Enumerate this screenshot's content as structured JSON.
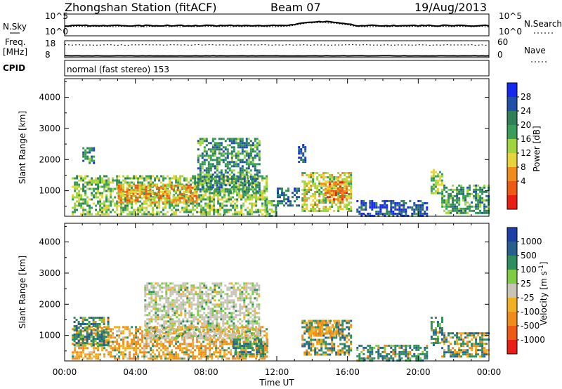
{
  "header": {
    "station": "Zhongshan Station (fitACF)",
    "beam": "Beam 07",
    "date": "19/Aug/2013"
  },
  "summary_panels": {
    "nsky_label": "N.Sky",
    "nsearch_label": "N.Search",
    "nsky_ticks": [
      "10^5",
      "10^0"
    ],
    "nsearch_ticks": [
      "10^5",
      "10^0"
    ],
    "freq_label": "Freq.",
    "freq_unit": "[MHz]",
    "freq_ticks": [
      "18",
      "8"
    ],
    "nave_label": "Nave",
    "nave_ticks": [
      "60",
      "0"
    ],
    "cpid_label": "CPID",
    "cpid_text": "normal (fast stereo) 153"
  },
  "chart_data": [
    {
      "type": "heatmap",
      "name": "Power",
      "ylabel": "Slant Range [km]",
      "yticks": [
        1000,
        2000,
        3000,
        4000
      ],
      "ylim": [
        180,
        4600
      ],
      "xlim_hours": [
        0,
        24
      ],
      "colorbar": {
        "label": "Power [dB]",
        "ticks": [
          "28",
          "24",
          "20",
          "16",
          "12",
          "8",
          "4"
        ],
        "colors": [
          "#1428f0",
          "#1f4fa6",
          "#2f7f5a",
          "#3a9e5a",
          "#9fd640",
          "#e6d43a",
          "#f08c1a",
          "#ee5a14",
          "#e81e14"
        ]
      },
      "regions": [
        {
          "t": [
            0.4,
            11.4
          ],
          "r": [
            250,
            1500
          ],
          "level": 0.45
        },
        {
          "t": [
            3.0,
            7.5
          ],
          "r": [
            600,
            1200
          ],
          "level": 0.72
        },
        {
          "t": [
            7.5,
            11.0
          ],
          "r": [
            1000,
            2700
          ],
          "level": 0.3
        },
        {
          "t": [
            1.0,
            1.6
          ],
          "r": [
            1900,
            2400
          ],
          "level": 0.25
        },
        {
          "t": [
            13.4,
            16.2
          ],
          "r": [
            350,
            1600
          ],
          "level": 0.55
        },
        {
          "t": [
            14.7,
            15.9
          ],
          "r": [
            700,
            1300
          ],
          "level": 0.8
        },
        {
          "t": [
            12.0,
            13.3
          ],
          "r": [
            500,
            1100
          ],
          "level": 0.2
        },
        {
          "t": [
            16.5,
            20.5
          ],
          "r": [
            200,
            700
          ],
          "level": 0.12
        },
        {
          "t": [
            20.7,
            21.3
          ],
          "r": [
            900,
            1700
          ],
          "level": 0.5
        },
        {
          "t": [
            21.3,
            24.0
          ],
          "r": [
            300,
            1200
          ],
          "level": 0.35
        },
        {
          "t": [
            11.3,
            11.9
          ],
          "r": [
            200,
            700
          ],
          "level": 0.4
        },
        {
          "t": [
            13.2,
            13.6
          ],
          "r": [
            1900,
            2500
          ],
          "level": 0.15
        }
      ]
    },
    {
      "type": "heatmap",
      "name": "Velocity",
      "ylabel": "Slant Range [km]",
      "yticks": [
        1000,
        2000,
        3000,
        4000
      ],
      "ylim": [
        180,
        4600
      ],
      "xlim_hours": [
        0,
        24
      ],
      "xticks": [
        "00:00",
        "04:00",
        "08:00",
        "12:00",
        "16:00",
        "20:00",
        "00:00"
      ],
      "xlabel": "Time UT",
      "colorbar": {
        "label": "Velocity [m s^-1]",
        "ticks": [
          "1000",
          "500",
          "100",
          "25",
          "-25",
          "-100",
          "-500",
          "-1000"
        ],
        "colors": [
          "#1c3ea8",
          "#27608f",
          "#2f8d5f",
          "#7ecb44",
          "#c8c4b8",
          "#f0b020",
          "#f08c1a",
          "#ee5a14",
          "#e81e14"
        ]
      },
      "regions": [
        {
          "t": [
            0.4,
            11.4
          ],
          "r": [
            250,
            1300
          ],
          "level": "neg"
        },
        {
          "t": [
            4.5,
            11.0
          ],
          "r": [
            900,
            2700
          ],
          "level": "zero"
        },
        {
          "t": [
            0.5,
            2.5
          ],
          "r": [
            700,
            1600
          ],
          "level": "pos"
        },
        {
          "t": [
            9.5,
            11.5
          ],
          "r": [
            300,
            900
          ],
          "level": "pos"
        },
        {
          "t": [
            13.4,
            16.2
          ],
          "r": [
            400,
            1500
          ],
          "level": "mix"
        },
        {
          "t": [
            13.8,
            15.5
          ],
          "r": [
            1000,
            1500
          ],
          "level": "neg"
        },
        {
          "t": [
            16.5,
            20.5
          ],
          "r": [
            200,
            700
          ],
          "level": "pos"
        },
        {
          "t": [
            20.7,
            21.3
          ],
          "r": [
            700,
            1600
          ],
          "level": "pos"
        },
        {
          "t": [
            21.3,
            24.0
          ],
          "r": [
            300,
            1100
          ],
          "level": "mix"
        }
      ]
    }
  ],
  "summary_traces": {
    "nsky_level": 0.28,
    "nsearch_level": 0.22,
    "freq_level": 0.35,
    "nave_level": 0.55
  }
}
